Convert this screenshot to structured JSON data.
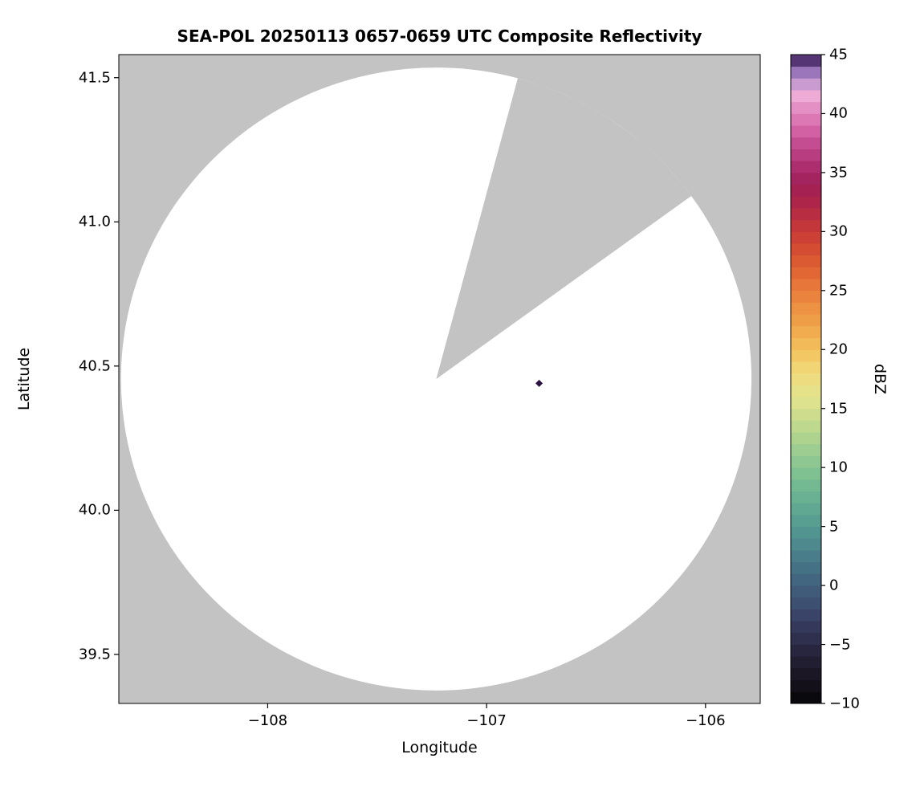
{
  "chart_data": {
    "type": "radar_composite_reflectivity_ppi",
    "title": "SEA-POL 20250113 0657-0659 UTC Composite Reflectivity",
    "xlabel": "Longitude",
    "ylabel": "Latitude",
    "xlim": [
      -108.68,
      -105.75
    ],
    "ylim": [
      39.33,
      41.58
    ],
    "grid": false,
    "xticks": [
      {
        "v": -108,
        "label": "−108"
      },
      {
        "v": -107,
        "label": "−107"
      },
      {
        "v": -106,
        "label": "−106"
      }
    ],
    "yticks": [
      {
        "v": 41.5,
        "label": "41.5"
      },
      {
        "v": 41.0,
        "label": "41.0"
      },
      {
        "v": 40.5,
        "label": "40.5"
      },
      {
        "v": 40.0,
        "label": "40.0"
      },
      {
        "v": 39.5,
        "label": "39.5"
      }
    ],
    "radar_coverage": {
      "center_lon": -107.23,
      "center_lat": 40.455,
      "radius_lon_deg": 1.44,
      "radius_lat_deg": 1.08,
      "missing_sector_start_az_deg": 15,
      "missing_sector_end_az_deg": 54
    },
    "echoes": [
      {
        "lon": -106.76,
        "lat": 40.44,
        "dbz": 45
      }
    ],
    "colorbar": {
      "label": "dBZ",
      "min": -10,
      "max": 45,
      "ticks": [
        {
          "v": 45,
          "label": "45"
        },
        {
          "v": 40,
          "label": "40"
        },
        {
          "v": 35,
          "label": "35"
        },
        {
          "v": 30,
          "label": "30"
        },
        {
          "v": 25,
          "label": "25"
        },
        {
          "v": 20,
          "label": "20"
        },
        {
          "v": 15,
          "label": "15"
        },
        {
          "v": 10,
          "label": "10"
        },
        {
          "v": 5,
          "label": "5"
        },
        {
          "v": 0,
          "label": "0"
        },
        {
          "v": -5,
          "label": "−5"
        },
        {
          "v": -10,
          "label": "−10"
        }
      ],
      "stops": [
        {
          "v": -10,
          "c": "#050508"
        },
        {
          "v": -8,
          "c": "#17141f"
        },
        {
          "v": -6,
          "c": "#252138"
        },
        {
          "v": -4,
          "c": "#323355"
        },
        {
          "v": -2,
          "c": "#3b4a6e"
        },
        {
          "v": 0,
          "c": "#41607c"
        },
        {
          "v": 2,
          "c": "#467787"
        },
        {
          "v": 4,
          "c": "#4f8f8f"
        },
        {
          "v": 6,
          "c": "#5ba391"
        },
        {
          "v": 8,
          "c": "#6db692"
        },
        {
          "v": 10,
          "c": "#86c492"
        },
        {
          "v": 12,
          "c": "#a5d090"
        },
        {
          "v": 14,
          "c": "#c6da8d"
        },
        {
          "v": 16,
          "c": "#e3e48d"
        },
        {
          "v": 18,
          "c": "#f0da7b"
        },
        {
          "v": 20,
          "c": "#f2c15c"
        },
        {
          "v": 22,
          "c": "#f0a54b"
        },
        {
          "v": 24,
          "c": "#ec8a3f"
        },
        {
          "v": 26,
          "c": "#e46f37"
        },
        {
          "v": 28,
          "c": "#d85330"
        },
        {
          "v": 30,
          "c": "#c83a36"
        },
        {
          "v": 32,
          "c": "#b22846"
        },
        {
          "v": 34,
          "c": "#9f1f55"
        },
        {
          "v": 36,
          "c": "#b03377"
        },
        {
          "v": 38,
          "c": "#cb5699"
        },
        {
          "v": 40,
          "c": "#e183bd"
        },
        {
          "v": 41.5,
          "c": "#edabd6"
        },
        {
          "v": 43,
          "c": "#b793cf"
        },
        {
          "v": 44,
          "c": "#7e58a5"
        },
        {
          "v": 45,
          "c": "#2b1240"
        }
      ]
    },
    "colors": {
      "outside_coverage": "#c3c3c3",
      "inside_coverage": "#ffffff",
      "spine": "#000000",
      "text": "#000000"
    }
  }
}
